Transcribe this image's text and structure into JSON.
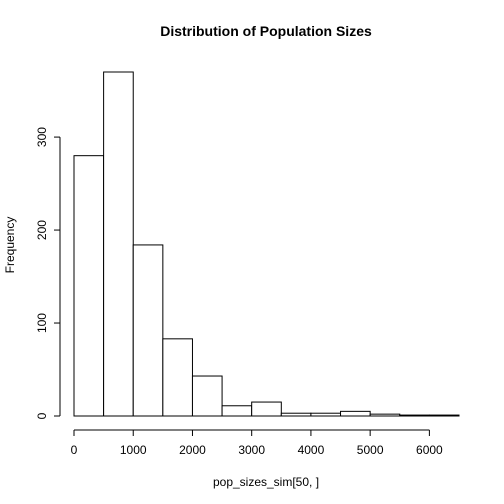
{
  "chart_data": {
    "type": "bar",
    "title": "Distribution of Population Sizes",
    "xlabel": "pop_sizes_sim[50, ]",
    "ylabel": "Frequency",
    "bin_edges": [
      0,
      500,
      1000,
      1500,
      2000,
      2500,
      3000,
      3500,
      4000,
      4500,
      5000,
      5500,
      6000,
      6500
    ],
    "values": [
      280,
      370,
      184,
      83,
      43,
      11,
      15,
      3,
      3,
      5,
      2,
      1,
      1
    ],
    "xlim": [
      0,
      6500
    ],
    "ylim": [
      0,
      370
    ],
    "x_ticks": [
      0,
      1000,
      2000,
      3000,
      4000,
      5000,
      6000
    ],
    "x_tick_labels": [
      "0",
      "1000",
      "2000",
      "3000",
      "4000",
      "5000",
      "6000"
    ],
    "y_ticks": [
      0,
      100,
      200,
      300
    ],
    "y_tick_labels": [
      "0",
      "100",
      "200",
      "300"
    ],
    "grid": false,
    "colors": {
      "bar_fill": "#ffffff",
      "bar_stroke": "#000000"
    }
  }
}
